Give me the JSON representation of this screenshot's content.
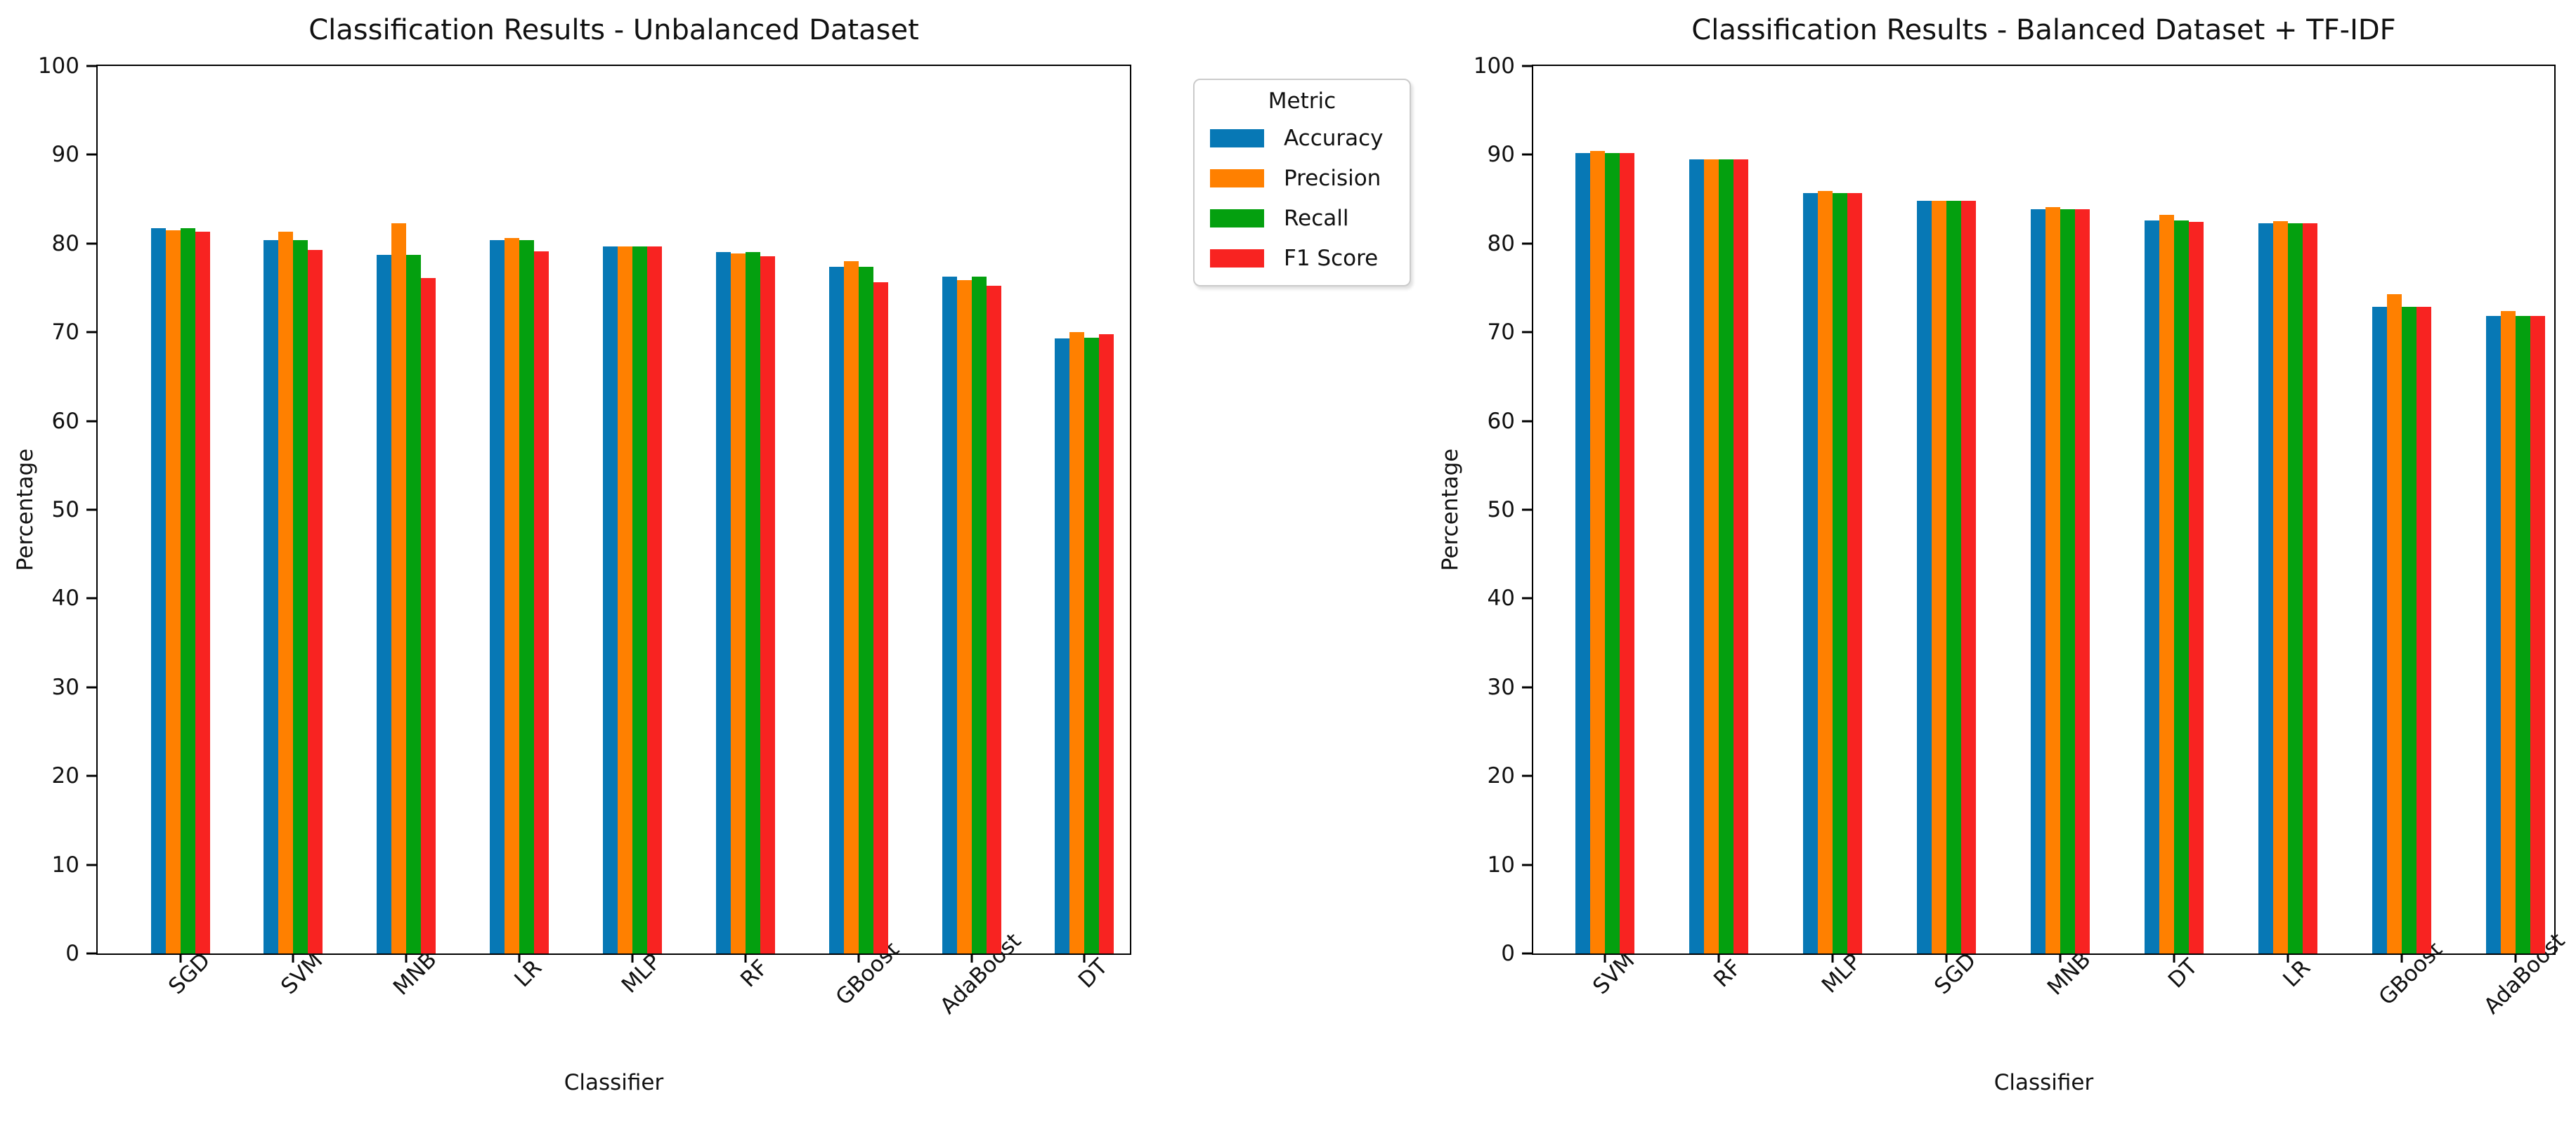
{
  "legend": {
    "title": "Metric",
    "entries": [
      {
        "label": "Accuracy",
        "color": "#0778b5"
      },
      {
        "label": "Precision",
        "color": "#ff8000"
      },
      {
        "label": "Recall",
        "color": "#04a00f"
      },
      {
        "label": "F1 Score",
        "color": "#f82321"
      }
    ]
  },
  "chart_data": [
    {
      "type": "bar",
      "title": "Classification Results - Unbalanced Dataset",
      "xlabel": "Classifier",
      "ylabel": "Percentage",
      "ylim": [
        0,
        100
      ],
      "yticks": [
        0,
        10,
        20,
        30,
        40,
        50,
        60,
        70,
        80,
        90,
        100
      ],
      "grid": false,
      "categories": [
        "SGD",
        "SVM",
        "MNB",
        "LR",
        "MLP",
        "RF",
        "GBoost",
        "AdaBoost",
        "DT"
      ],
      "series": [
        {
          "name": "Accuracy",
          "color": "#0778b5",
          "values": [
            81.7,
            80.4,
            78.7,
            80.4,
            79.7,
            79.0,
            77.4,
            76.3,
            69.3
          ]
        },
        {
          "name": "Precision",
          "color": "#ff8000",
          "values": [
            81.5,
            81.3,
            82.3,
            80.6,
            79.7,
            78.9,
            78.0,
            75.9,
            70.0
          ]
        },
        {
          "name": "Recall",
          "color": "#04a00f",
          "values": [
            81.7,
            80.4,
            78.7,
            80.4,
            79.7,
            79.0,
            77.4,
            76.3,
            69.4
          ]
        },
        {
          "name": "F1 Score",
          "color": "#f82321",
          "values": [
            81.3,
            79.3,
            76.1,
            79.1,
            79.7,
            78.6,
            75.6,
            75.2,
            69.8
          ]
        }
      ]
    },
    {
      "type": "bar",
      "title": "Classification Results - Balanced Dataset + TF-IDF",
      "xlabel": "Classifier",
      "ylabel": "Percentage",
      "ylim": [
        0,
        100
      ],
      "yticks": [
        0,
        10,
        20,
        30,
        40,
        50,
        60,
        70,
        80,
        90,
        100
      ],
      "grid": false,
      "categories": [
        "SVM",
        "RF",
        "MLP",
        "SGD",
        "MNB",
        "DT",
        "LR",
        "GBoost",
        "AdaBoost"
      ],
      "series": [
        {
          "name": "Accuracy",
          "color": "#0778b5",
          "values": [
            90.2,
            89.5,
            85.7,
            84.8,
            83.9,
            82.6,
            82.3,
            72.9,
            71.8
          ]
        },
        {
          "name": "Precision",
          "color": "#ff8000",
          "values": [
            90.4,
            89.5,
            85.9,
            84.8,
            84.1,
            83.2,
            82.5,
            74.3,
            72.4
          ]
        },
        {
          "name": "Recall",
          "color": "#04a00f",
          "values": [
            90.2,
            89.5,
            85.7,
            84.8,
            83.9,
            82.6,
            82.3,
            72.9,
            71.8
          ]
        },
        {
          "name": "F1 Score",
          "color": "#f82321",
          "values": [
            90.2,
            89.5,
            85.7,
            84.8,
            83.9,
            82.4,
            82.3,
            72.9,
            71.8
          ]
        }
      ]
    }
  ]
}
